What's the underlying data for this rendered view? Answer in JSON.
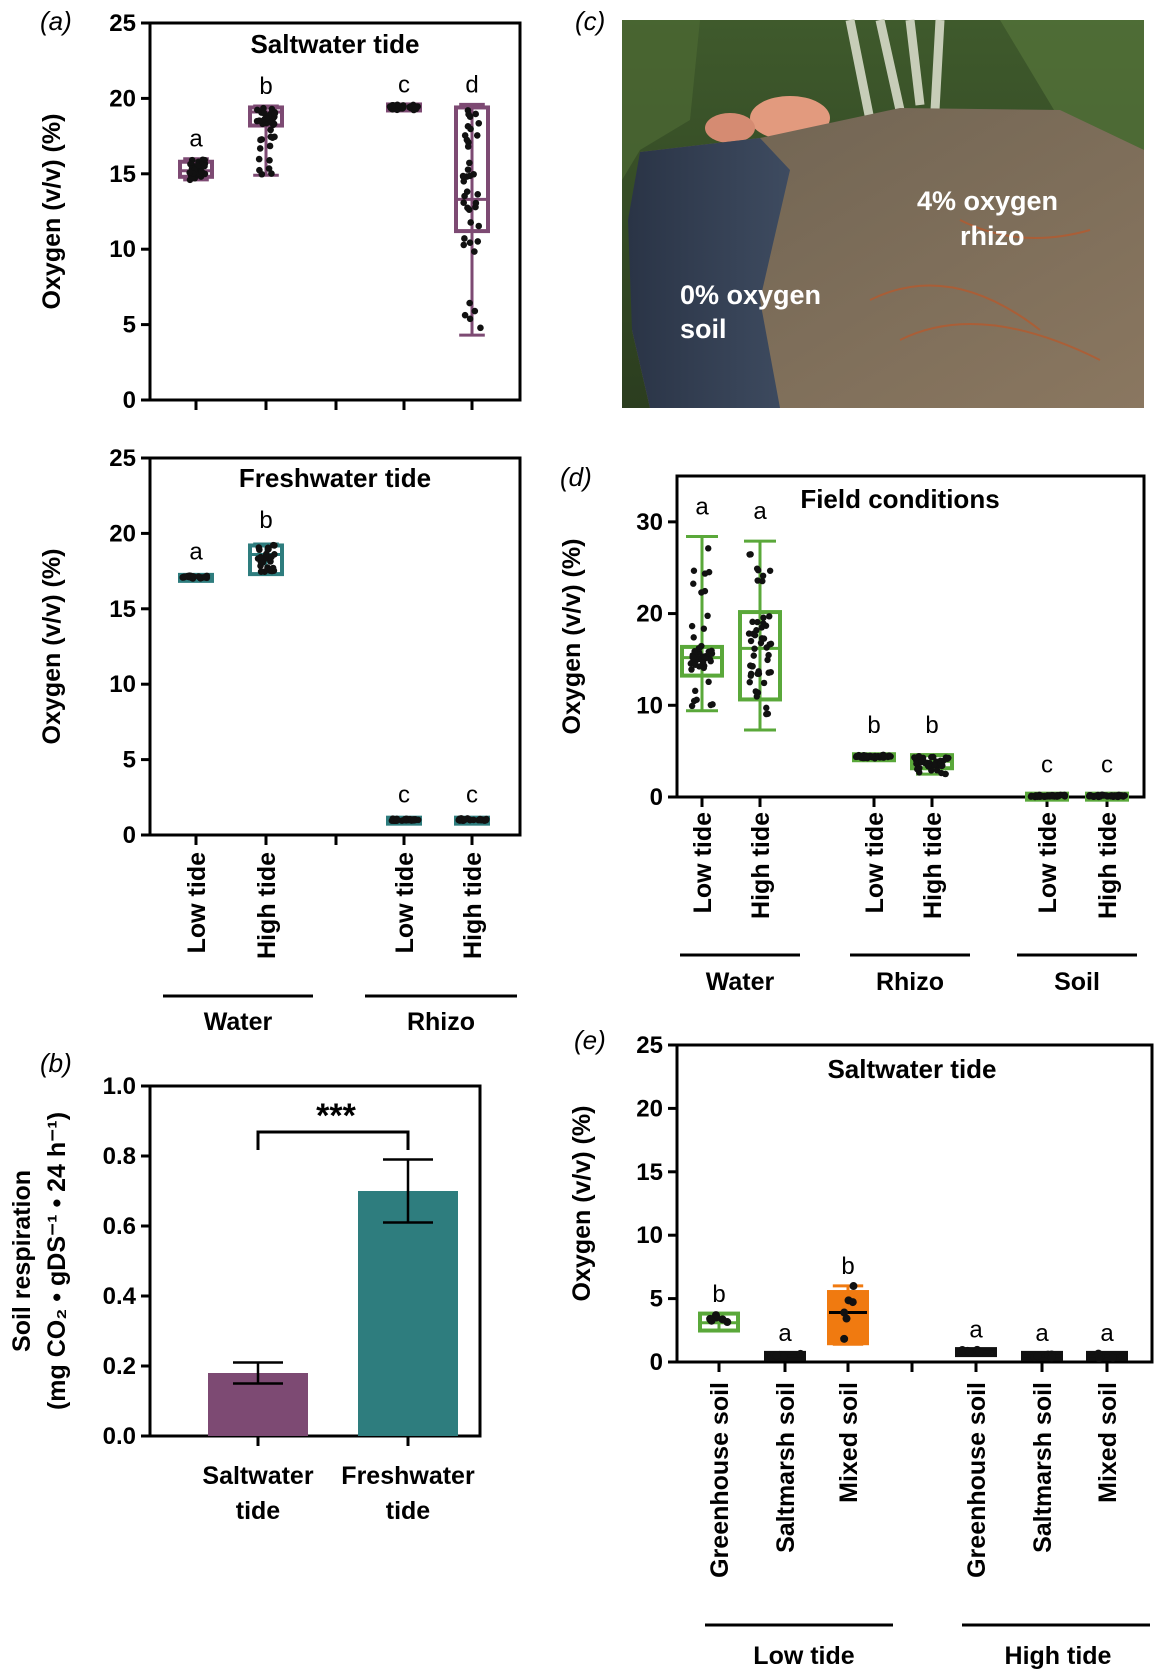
{
  "colors": {
    "saltwater": "#7d4a73",
    "freshwater": "#2e7d7e",
    "field": "#5aa83a",
    "greenhouse": "#5aa83a",
    "mixed": "#f07a10",
    "dot": "#111111"
  },
  "panel_labels": {
    "a": "(a)",
    "b": "(b)",
    "c": "(c)",
    "d": "(d)",
    "e": "(e)"
  },
  "photo": {
    "soil_label_1": "0% oxygen",
    "soil_label_2": "soil",
    "rhizo_label_1": "4% oxygen",
    "rhizo_label_2": "rhizo"
  },
  "chart_data": [
    {
      "id": "a-top",
      "type": "box",
      "title": "Saltwater tide",
      "ylabel": "Oxygen (v/v) (%)",
      "ylim": [
        0,
        25
      ],
      "yticks": [
        0,
        5,
        10,
        15,
        20,
        25
      ],
      "boxes": [
        {
          "group": "Water",
          "category": "Low tide",
          "min": 14.6,
          "q1": 14.9,
          "median": 15.2,
          "q3": 15.7,
          "max": 16.0,
          "letter": "a",
          "color": "saltwater"
        },
        {
          "group": "Water",
          "category": "High tide",
          "min": 14.9,
          "q1": 18.3,
          "median": 19.1,
          "q3": 19.3,
          "max": 19.5,
          "letter": "b",
          "color": "saltwater"
        },
        {
          "group": "Rhizo",
          "category": "Low tide",
          "min": 19.2,
          "q1": 19.3,
          "median": 19.4,
          "q3": 19.5,
          "max": 19.6,
          "letter": "c",
          "color": "saltwater"
        },
        {
          "group": "Rhizo",
          "category": "High tide",
          "min": 4.3,
          "q1": 11.3,
          "median": 13.3,
          "q3": 19.3,
          "max": 19.6,
          "letter": "d",
          "color": "saltwater"
        }
      ]
    },
    {
      "id": "a-bottom",
      "type": "box",
      "title": "Freshwater tide",
      "ylabel": "Oxygen (v/v) (%)",
      "ylim": [
        0,
        25
      ],
      "yticks": [
        0,
        5,
        10,
        15,
        20,
        25
      ],
      "groups": [
        "Water",
        "Rhizo"
      ],
      "categories": [
        "Low tide",
        "High tide",
        "Low tide",
        "High tide"
      ],
      "boxes": [
        {
          "group": "Water",
          "category": "Low tide",
          "min": 17.0,
          "q1": 17.05,
          "median": 17.1,
          "q3": 17.15,
          "max": 17.2,
          "letter": "a",
          "color": "freshwater"
        },
        {
          "group": "Water",
          "category": "High tide",
          "min": 17.3,
          "q1": 17.4,
          "median": 18.6,
          "q3": 19.1,
          "max": 19.3,
          "letter": "b",
          "color": "freshwater"
        },
        {
          "group": "Rhizo",
          "category": "Low tide",
          "min": 0.9,
          "q1": 0.95,
          "median": 1.0,
          "q3": 1.05,
          "max": 1.1,
          "letter": "c",
          "color": "freshwater"
        },
        {
          "group": "Rhizo",
          "category": "High tide",
          "min": 0.9,
          "q1": 0.95,
          "median": 1.0,
          "q3": 1.05,
          "max": 1.1,
          "letter": "c",
          "color": "freshwater"
        }
      ]
    },
    {
      "id": "b",
      "type": "bar",
      "ylabel_line1": "Soil respiration",
      "ylabel_line2": "(mg CO₂ • gDS⁻¹ • 24 h⁻¹)",
      "ylim": [
        0,
        1.0
      ],
      "yticks": [
        "0.0",
        "0.2",
        "0.4",
        "0.6",
        "0.8",
        "1.0"
      ],
      "significance": "***",
      "bars": [
        {
          "category_line1": "Saltwater",
          "category_line2": "tide",
          "value": 0.18,
          "error": 0.03,
          "color": "saltwater"
        },
        {
          "category_line1": "Freshwater",
          "category_line2": "tide",
          "value": 0.7,
          "error": 0.09,
          "color": "freshwater"
        }
      ]
    },
    {
      "id": "d",
      "type": "box",
      "title": "Field conditions",
      "ylabel": "Oxygen (v/v) (%)",
      "ylim": [
        0,
        35
      ],
      "yticks": [
        0,
        10,
        20,
        30
      ],
      "groups": [
        "Water",
        "Rhizo",
        "Soil"
      ],
      "boxes": [
        {
          "group": "Water",
          "category": "Low tide",
          "min": 9.4,
          "q1": 13.4,
          "median": 15.2,
          "q3": 16.2,
          "max": 28.4,
          "letter": "a",
          "color": "field"
        },
        {
          "group": "Water",
          "category": "High tide",
          "min": 7.3,
          "q1": 10.8,
          "median": 16.2,
          "q3": 20.0,
          "max": 27.9,
          "letter": "a",
          "color": "field"
        },
        {
          "group": "Rhizo",
          "category": "Low tide",
          "min": 4.2,
          "q1": 4.3,
          "median": 4.4,
          "q3": 4.5,
          "max": 4.6,
          "letter": "b",
          "color": "field"
        },
        {
          "group": "Rhizo",
          "category": "High tide",
          "min": 2.5,
          "q1": 3.3,
          "median": 3.9,
          "q3": 4.4,
          "max": 4.6,
          "letter": "b",
          "color": "field"
        },
        {
          "group": "Soil",
          "category": "Low tide",
          "min": 0.0,
          "q1": 0.05,
          "median": 0.1,
          "q3": 0.2,
          "max": 0.25,
          "letter": "c",
          "color": "field"
        },
        {
          "group": "Soil",
          "category": "High tide",
          "min": 0.0,
          "q1": 0.05,
          "median": 0.1,
          "q3": 0.2,
          "max": 0.25,
          "letter": "c",
          "color": "field"
        }
      ]
    },
    {
      "id": "e",
      "type": "box",
      "title": "Saltwater tide",
      "ylabel": "Oxygen (v/v) (%)",
      "ylim": [
        0,
        25
      ],
      "yticks": [
        0,
        5,
        10,
        15,
        20,
        25
      ],
      "groups": [
        "Low tide",
        "High tide"
      ],
      "boxes": [
        {
          "group": "Low tide",
          "category": "Greenhouse soil",
          "min": 2.5,
          "q1": 2.6,
          "median": 3.1,
          "q3": 3.7,
          "max": 3.8,
          "letter": "b",
          "color": "greenhouse"
        },
        {
          "group": "Low tide",
          "category": "Saltmarsh soil",
          "min": 0.3,
          "q1": 0.4,
          "median": 0.5,
          "q3": 0.6,
          "max": 0.7,
          "letter": "a",
          "color": "dot"
        },
        {
          "group": "Low tide",
          "category": "Mixed soil",
          "min": 1.4,
          "q1": 1.6,
          "median": 3.9,
          "q3": 5.4,
          "max": 6.0,
          "letter": "b",
          "color": "mixed"
        },
        {
          "group": "High tide",
          "category": "Greenhouse soil",
          "min": 0.6,
          "q1": 0.7,
          "median": 0.8,
          "q3": 0.9,
          "max": 1.0,
          "letter": "a",
          "color": "dot"
        },
        {
          "group": "High tide",
          "category": "Saltmarsh soil",
          "min": 0.3,
          "q1": 0.4,
          "median": 0.5,
          "q3": 0.6,
          "max": 0.7,
          "letter": "a",
          "color": "dot"
        },
        {
          "group": "High tide",
          "category": "Mixed soil",
          "min": 0.3,
          "q1": 0.4,
          "median": 0.5,
          "q3": 0.6,
          "max": 0.7,
          "letter": "a",
          "color": "dot"
        }
      ]
    }
  ]
}
